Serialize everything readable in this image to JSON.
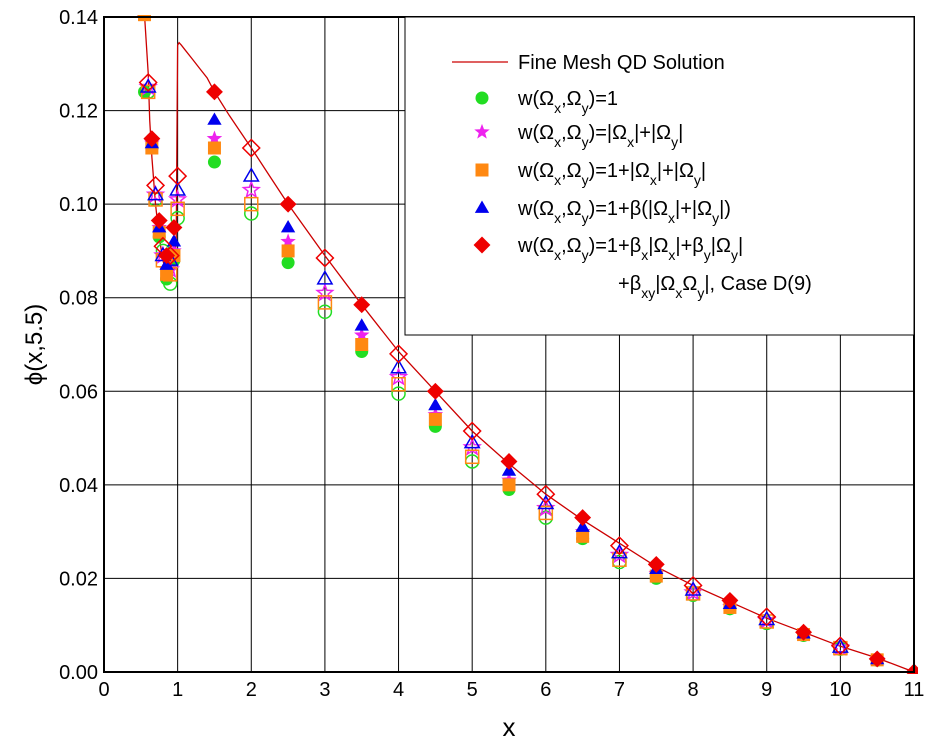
{
  "chart_data": {
    "type": "scatter",
    "xlabel": "x",
    "ylabel": "ϕ(x,5.5)",
    "xlim": [
      0,
      11
    ],
    "ylim": [
      0,
      0.14
    ],
    "x_ticks": [
      0,
      1,
      2,
      3,
      4,
      5,
      6,
      7,
      8,
      9,
      10,
      11
    ],
    "x_tick_labels": [
      "0",
      "1",
      "2",
      "3",
      "4",
      "5",
      "6",
      "7",
      "8",
      "9",
      "10",
      "11"
    ],
    "y_ticks": [
      0,
      0.02,
      0.04,
      0.06,
      0.08,
      0.1,
      0.12,
      0.14
    ],
    "y_tick_labels": [
      "0.00",
      "0.02",
      "0.04",
      "0.06",
      "0.08",
      "0.10",
      "0.12",
      "0.14"
    ],
    "grid": true,
    "legend_position": "top-right",
    "line": {
      "name": "Fine Mesh QD Solution",
      "color": "#cc0000",
      "x": [
        0.45,
        0.55,
        0.6,
        0.62,
        0.65,
        0.7,
        0.75,
        0.8,
        0.85,
        0.9,
        0.95,
        0.98,
        1.0,
        1.02,
        1.05,
        1.1,
        1.2,
        1.3,
        1.4,
        1.5,
        1.7,
        2.0,
        2.25,
        2.5,
        3.0,
        3.5,
        4.0,
        4.5,
        5.0,
        5.5,
        6.0,
        6.5,
        7.0,
        7.5,
        8.0,
        8.5,
        9.0,
        9.5,
        10.0,
        10.5,
        11.0
      ],
      "y": [
        0.1405,
        0.1405,
        0.128,
        0.118,
        0.11,
        0.1,
        0.093,
        0.088,
        0.085,
        0.084,
        0.086,
        0.092,
        0.134,
        0.1345,
        0.134,
        0.133,
        0.131,
        0.129,
        0.127,
        0.124,
        0.119,
        0.112,
        0.106,
        0.1,
        0.089,
        0.0785,
        0.0685,
        0.06,
        0.0515,
        0.0445,
        0.038,
        0.0325,
        0.0275,
        0.0225,
        0.0185,
        0.015,
        0.0115,
        0.0085,
        0.0055,
        0.003,
        0.0
      ]
    },
    "series": [
      {
        "name": "w(Ωx,Ωy)=1",
        "marker": "circle",
        "color": "#22dd22",
        "filled_x": [
          0.55,
          0.65,
          0.75,
          0.85,
          0.95,
          1.5,
          2.5,
          3.5,
          4.5,
          5.5,
          6.5,
          7.5,
          8.5,
          9.5,
          10.5
        ],
        "filled_y": [
          0.124,
          0.112,
          0.093,
          0.084,
          0.088,
          0.109,
          0.0875,
          0.0685,
          0.0525,
          0.039,
          0.0285,
          0.02,
          0.0135,
          0.0078,
          0.0025
        ],
        "open_x": [
          0.6,
          0.7,
          0.8,
          0.9,
          1.0,
          2.0,
          3.0,
          4.0,
          5.0,
          6.0,
          7.0,
          8.0,
          9.0,
          10.0
        ],
        "open_y": [
          0.124,
          0.101,
          0.09,
          0.083,
          0.097,
          0.098,
          0.077,
          0.0595,
          0.045,
          0.033,
          0.0235,
          0.0165,
          0.0105,
          0.005
        ]
      },
      {
        "name": "w(Ωx,Ωy)=|Ωx|+|Ωy|",
        "marker": "star",
        "color": "#ee22ee",
        "filled_x": [
          0.55,
          0.65,
          0.75,
          0.85,
          0.95,
          1.5,
          2.5,
          3.5,
          4.5,
          5.5,
          6.5,
          7.5,
          8.5,
          9.5,
          10.5
        ],
        "filled_y": [
          0.1405,
          0.113,
          0.095,
          0.086,
          0.09,
          0.114,
          0.092,
          0.072,
          0.055,
          0.041,
          0.03,
          0.021,
          0.014,
          0.008,
          0.0026
        ],
        "open_x": [
          0.6,
          0.7,
          0.8,
          0.9,
          1.0,
          2.0,
          3.0,
          4.0,
          5.0,
          6.0,
          7.0,
          8.0,
          9.0,
          10.0
        ],
        "open_y": [
          0.125,
          0.102,
          0.089,
          0.086,
          0.101,
          0.103,
          0.081,
          0.063,
          0.048,
          0.035,
          0.025,
          0.017,
          0.011,
          0.0052
        ]
      },
      {
        "name": "w(Ωx,Ωy)=1+|Ωx|+|Ωy|",
        "marker": "square",
        "color": "#ff8811",
        "filled_x": [
          0.55,
          0.65,
          0.75,
          0.85,
          0.95,
          1.5,
          2.5,
          3.5,
          4.5,
          5.5,
          6.5,
          7.5,
          8.5,
          9.5,
          10.5
        ],
        "filled_y": [
          0.1405,
          0.112,
          0.094,
          0.085,
          0.089,
          0.112,
          0.09,
          0.07,
          0.054,
          0.04,
          0.029,
          0.0205,
          0.0138,
          0.008,
          0.0026
        ],
        "open_x": [
          0.6,
          0.7,
          0.8,
          0.9,
          1.0,
          2.0,
          3.0,
          4.0,
          5.0,
          6.0,
          7.0,
          8.0,
          9.0,
          10.0
        ],
        "open_y": [
          0.124,
          0.101,
          0.088,
          0.085,
          0.099,
          0.1,
          0.079,
          0.0615,
          0.046,
          0.034,
          0.024,
          0.0168,
          0.0108,
          0.0051
        ]
      },
      {
        "name": "w(Ωx,Ωy)=1+β(|Ωx|+|Ωy|)",
        "marker": "triangle",
        "color": "#0000ee",
        "filled_x": [
          0.65,
          0.75,
          0.85,
          0.95,
          1.5,
          2.5,
          3.5,
          4.5,
          5.5,
          6.5,
          7.5,
          8.5,
          9.5,
          10.5
        ],
        "filled_y": [
          0.113,
          0.095,
          0.087,
          0.092,
          0.118,
          0.095,
          0.074,
          0.057,
          0.043,
          0.031,
          0.022,
          0.0145,
          0.0082,
          0.0027
        ],
        "open_x": [
          0.6,
          0.7,
          0.8,
          0.9,
          1.0,
          2.0,
          3.0,
          4.0,
          5.0,
          6.0,
          7.0,
          8.0,
          9.0,
          10.0
        ],
        "open_y": [
          0.125,
          0.102,
          0.089,
          0.088,
          0.103,
          0.106,
          0.084,
          0.065,
          0.049,
          0.036,
          0.0255,
          0.0175,
          0.0112,
          0.0053
        ]
      },
      {
        "name": "w(Ωx,Ωy)=1+βx|Ωx|+βy|Ωy| +βxy|ΩxΩy|, Case D(9)",
        "marker": "diamond",
        "color": "#ee0000",
        "filled_x": [
          0.65,
          0.75,
          0.85,
          0.95,
          1.5,
          2.5,
          3.5,
          4.5,
          5.5,
          6.5,
          7.5,
          8.5,
          9.5,
          10.5,
          11.0
        ],
        "filled_y": [
          0.114,
          0.0965,
          0.089,
          0.095,
          0.124,
          0.1,
          0.0785,
          0.06,
          0.045,
          0.033,
          0.023,
          0.0153,
          0.0085,
          0.0028,
          0.0
        ],
        "open_x": [
          0.6,
          0.7,
          0.8,
          0.9,
          1.0,
          2.0,
          3.0,
          4.0,
          5.0,
          6.0,
          7.0,
          8.0,
          9.0,
          10.0
        ],
        "open_y": [
          0.126,
          0.104,
          0.091,
          0.089,
          0.106,
          0.112,
          0.0885,
          0.068,
          0.0515,
          0.038,
          0.027,
          0.0185,
          0.0118,
          0.0056
        ]
      }
    ]
  }
}
